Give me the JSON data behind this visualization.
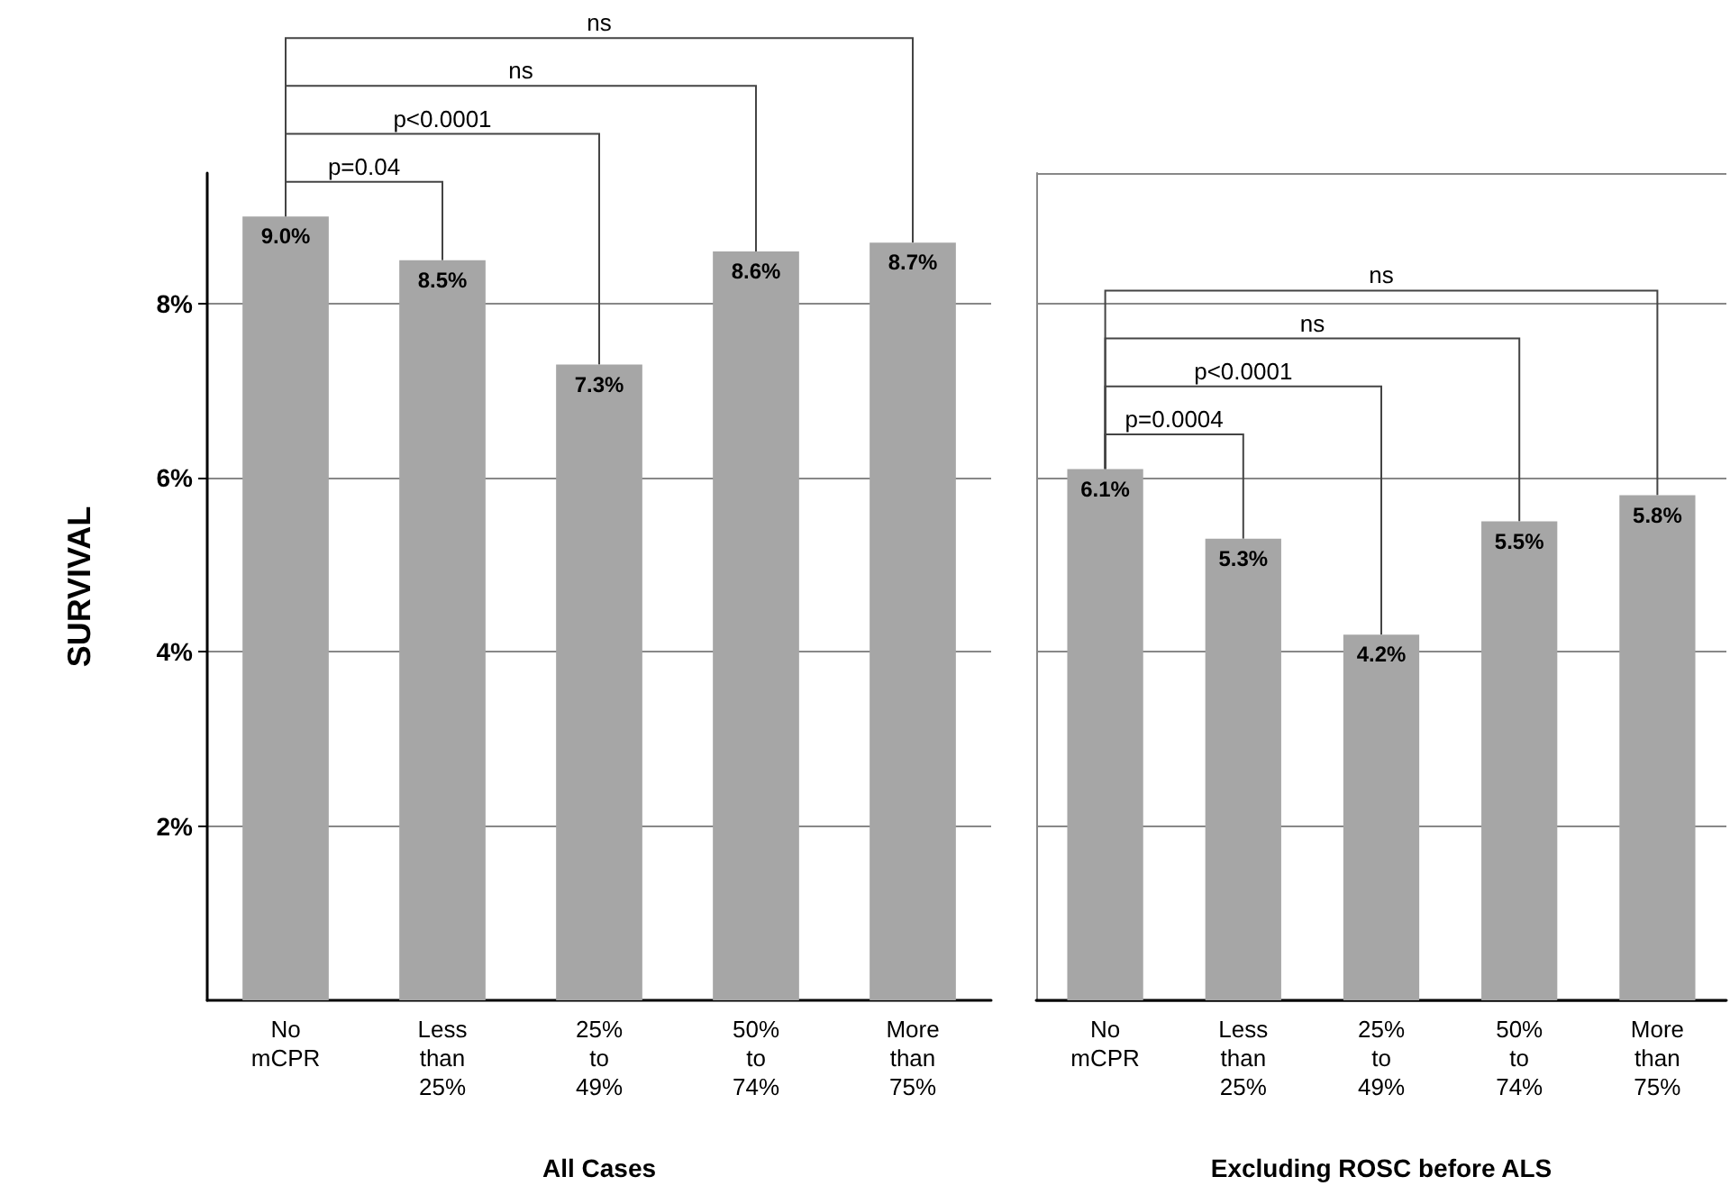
{
  "chart_data": [
    {
      "type": "bar",
      "xlabel": "All Cases",
      "ylabel": "SURVIVAL",
      "categories": [
        "No\nmCPR",
        "Less\nthan\n25%",
        "25%\nto\n49%",
        "50%\nto\n74%",
        "More\nthan\n75%"
      ],
      "values": [
        9.0,
        8.5,
        7.3,
        8.6,
        8.7
      ],
      "value_labels": [
        "9.0%",
        "8.5%",
        "7.3%",
        "8.6%",
        "8.7%"
      ],
      "color": "#a6a6a6",
      "ylim": [
        0,
        9.5
      ],
      "yticks": [
        {
          "value": 2,
          "label": "2%"
        },
        {
          "value": 4,
          "label": "4%"
        },
        {
          "value": 6,
          "label": "6%"
        },
        {
          "value": 8,
          "label": "8%"
        }
      ],
      "grid": "y",
      "annotations": [
        "p=0.04",
        "p<0.0001",
        "ns",
        "ns"
      ]
    },
    {
      "type": "bar",
      "xlabel": "Excluding ROSC before ALS",
      "categories": [
        "No\nmCPR",
        "Less\nthan\n25%",
        "25%\nto\n49%",
        "50%\nto\n74%",
        "More\nthan\n75%"
      ],
      "values": [
        6.1,
        5.3,
        4.2,
        5.5,
        5.8
      ],
      "value_labels": [
        "6.1%",
        "5.3%",
        "4.2%",
        "5.5%",
        "5.8%"
      ],
      "color": "#a6a6a6",
      "ylim": [
        0,
        9.5
      ],
      "grid": "y",
      "tick_labels": "x",
      "annotations": [
        "p=0.0004",
        "p<0.0001",
        "ns",
        "ns"
      ]
    }
  ]
}
